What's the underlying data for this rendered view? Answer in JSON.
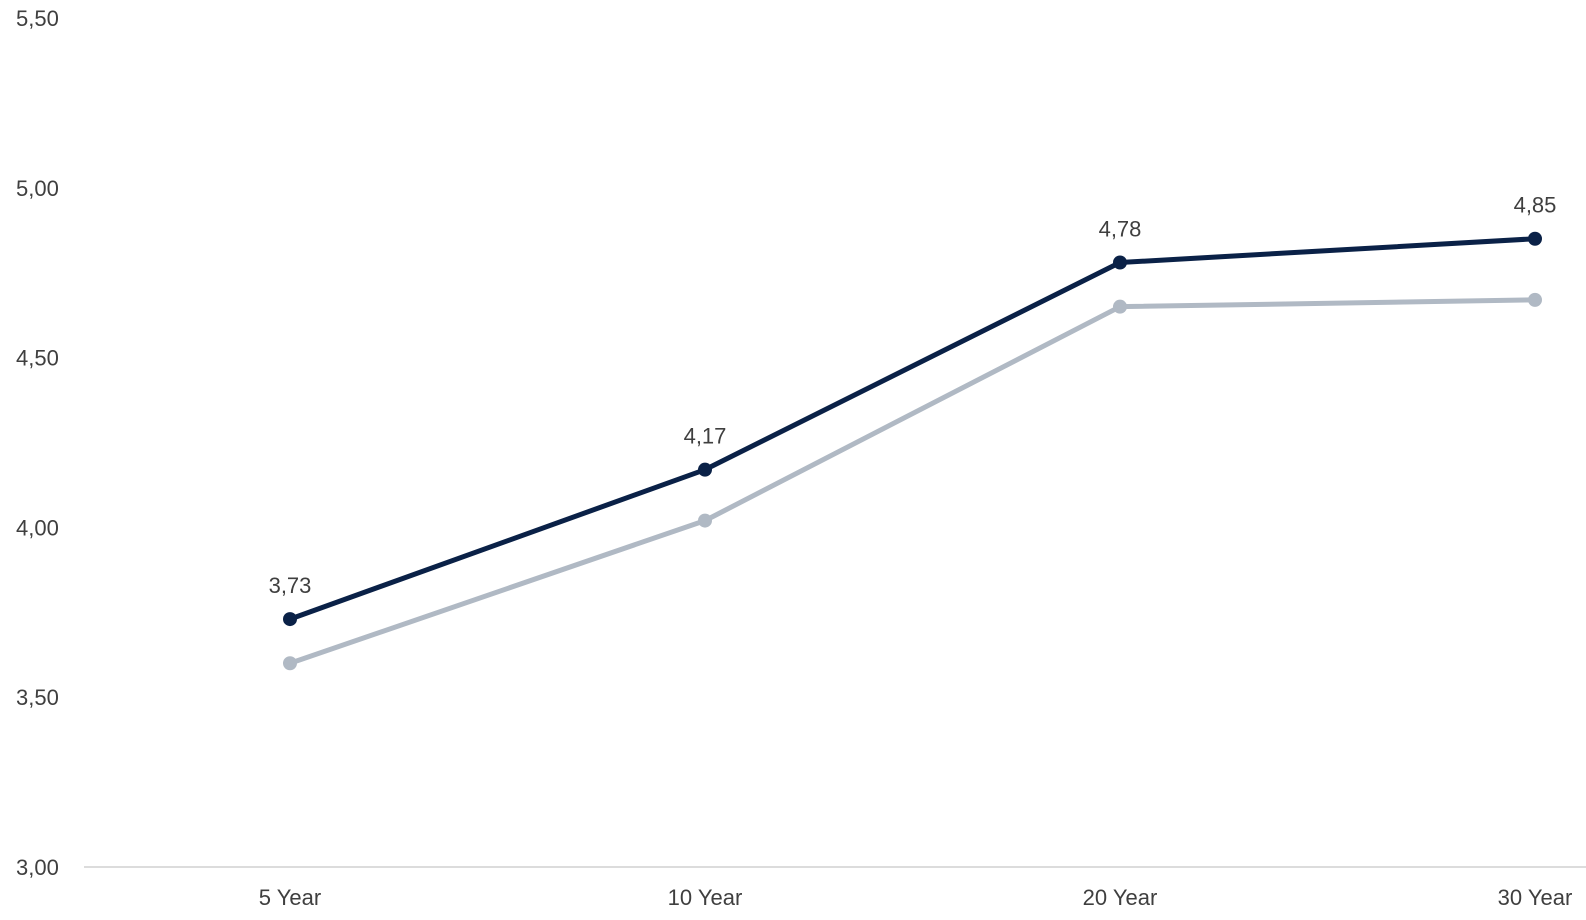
{
  "chart_data": {
    "type": "line",
    "title": "",
    "xlabel": "",
    "ylabel": "",
    "categories": [
      "5 Year",
      "10 Year",
      "20 Year",
      "30 Year"
    ],
    "y_ticks": [
      "3,00",
      "3,50",
      "4,00",
      "4,50",
      "5,00",
      "5,50"
    ],
    "ylim": [
      3.0,
      5.5
    ],
    "grid": false,
    "legend": "none",
    "series": [
      {
        "values": [
          3.73,
          4.17,
          4.78,
          4.85
        ],
        "data_labels": [
          "3,73",
          "4,17",
          "4,78",
          "4,85"
        ],
        "color": "#0a2147"
      },
      {
        "values": [
          3.6,
          4.02,
          4.65,
          4.67
        ],
        "color": "#b0b9c4"
      }
    ]
  },
  "colors": {
    "axis_line": "#d0d0d0",
    "text": "#3f3f3f"
  }
}
